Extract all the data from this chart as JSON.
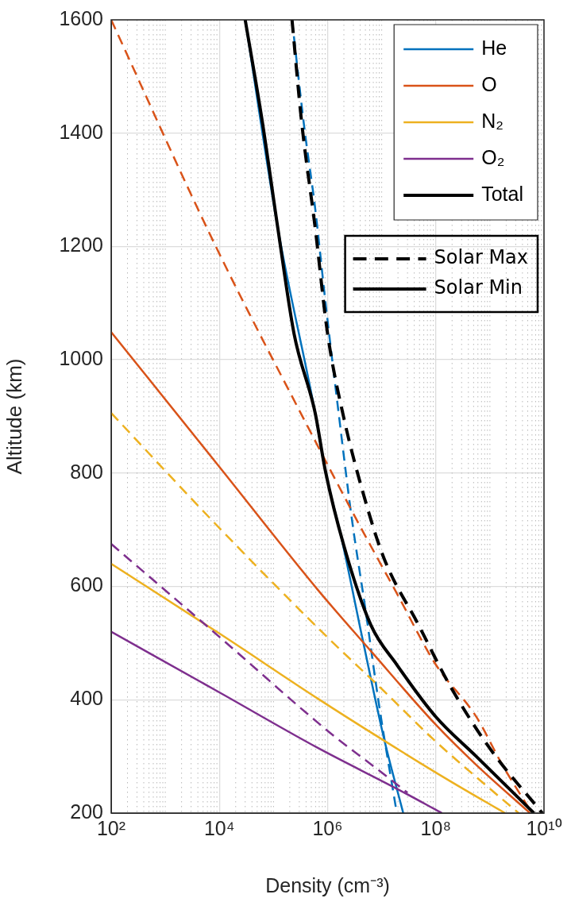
{
  "chart_data": {
    "type": "line",
    "xlabel": "Density (cm⁻³)",
    "ylabel": "Altitude (km)",
    "xlim": [
      100,
      10000000000.0
    ],
    "ylim": [
      200,
      1600
    ],
    "xticks": [
      {
        "value": 100,
        "label": "10²"
      },
      {
        "value": 10000.0,
        "label": "10⁴"
      },
      {
        "value": 1000000.0,
        "label": "10⁶"
      },
      {
        "value": 100000000.0,
        "label": "10⁸"
      },
      {
        "value": 10000000000.0,
        "label": "10¹⁰"
      }
    ],
    "yticks": [
      200,
      400,
      600,
      800,
      1000,
      1200,
      1400,
      1600
    ],
    "log": "x",
    "grid": true,
    "legend": "top right",
    "marker": "none",
    "annotations": [
      "Solar Max",
      "Solar Min"
    ],
    "series": [
      {
        "color": "#0072bd",
        "line_style": "dashed",
        "x": [
          220000.0,
          370000.0,
          590000.0,
          910000.0,
          1600000.0,
          2800000.0,
          5000000.0,
          8900000.0,
          19000000.0
        ],
        "values": [
          1600,
          1411,
          1267,
          1103,
          906,
          720,
          560,
          392,
          200
        ]
      },
      {
        "name": "He",
        "color": "#0072bd",
        "line_style": "solid",
        "x": [
          30000.0,
          120000.0,
          590000.0,
          910000.0,
          1800000.0,
          4500000.0,
          11000000.0,
          25000000.0
        ],
        "values": [
          1600,
          1233,
          906,
          804,
          686,
          504,
          332,
          200
        ]
      },
      {
        "color": "#d95319",
        "line_style": "dashed",
        "x": [
          100,
          8100.0,
          430000.0,
          4000000.0,
          19000000.0,
          100000000.0,
          560000000.0,
          1700000000.0,
          6000000000.0
        ],
        "values": [
          1600,
          1205,
          882,
          706,
          588,
          462,
          370,
          285,
          200
        ]
      },
      {
        "name": "O",
        "color": "#d95319",
        "line_style": "solid",
        "x": [
          100,
          10000.0,
          660000.0,
          6300000.0,
          100000000.0,
          560000000.0,
          5500000000.0
        ],
        "values": [
          1049,
          811,
          594,
          486,
          356,
          285,
          200
        ]
      },
      {
        "color": "#edb120",
        "line_style": "dashed",
        "x": [
          100,
          11000.0,
          1000000.0,
          9800000.0,
          93000000.0,
          1000000000.0,
          3400000000.0
        ],
        "values": [
          906,
          699,
          510,
          420,
          329,
          243,
          200
        ]
      },
      {
        "name": "N₂",
        "color": "#edb120",
        "line_style": "solid",
        "x": [
          100,
          10000.0,
          660000.0,
          11000000.0,
          180000000.0,
          1900000000.0
        ],
        "values": [
          640,
          517,
          402,
          328,
          257,
          200
        ]
      },
      {
        "color": "#7e2f8e",
        "line_style": "dashed",
        "x": [
          100,
          10000.0,
          1100000.0,
          8700000.0,
          30000000.0
        ],
        "values": [
          675,
          511,
          342,
          276,
          236
        ]
      },
      {
        "name": "O₂",
        "color": "#7e2f8e",
        "line_style": "solid",
        "x": [
          100,
          10000.0,
          660000.0,
          19000000.0,
          130000000.0
        ],
        "values": [
          520,
          413,
          315,
          243,
          200
        ]
      },
      {
        "color": "#000000",
        "line_style": "dashed",
        "x": [
          220000.0,
          330000.0,
          590000.0,
          1000000.0,
          2000000.0,
          4500000.0,
          11000000.0,
          48000000.0,
          180000000.0,
          1000000000.0,
          9300000000.0
        ],
        "values": [
          1600,
          1421,
          1233,
          1046,
          897,
          766,
          650,
          532,
          426,
          314,
          200
        ]
      },
      {
        "name": "Total",
        "color": "#000000",
        "line_style": "solid",
        "x": [
          30000.0,
          62000.0,
          120000.0,
          240000.0,
          590000.0,
          910000.0,
          2000000.0,
          6300000.0,
          19000000.0,
          100000000.0,
          560000000.0,
          6500000000.0
        ],
        "values": [
          1600,
          1421,
          1233,
          1046,
          906,
          804,
          672,
          532,
          462,
          370,
          300,
          200
        ]
      }
    ]
  }
}
